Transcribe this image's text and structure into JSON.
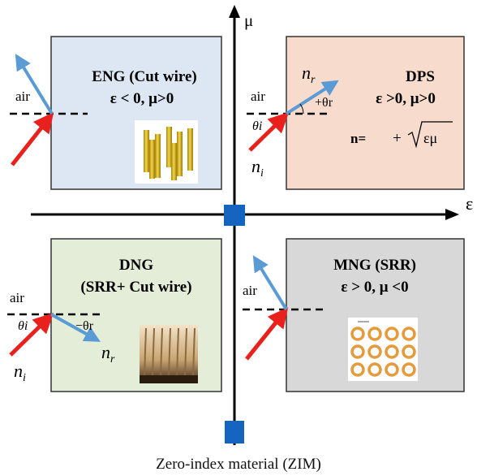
{
  "axes": {
    "mu_label": "μ",
    "eps_label": "ε"
  },
  "quadrants": {
    "eng": {
      "title": "ENG (Cut wire)",
      "condition": "ε < 0, μ>0",
      "medium_label": "air",
      "fill": "#dce7f3"
    },
    "dps": {
      "title": "DPS",
      "condition": "ε >0, μ>0",
      "index_formula_lhs": "n=",
      "index_formula_sign": "+",
      "index_formula_root": "εμ",
      "medium_label": "air",
      "n_r": "n",
      "n_r_sub": "r",
      "n_i": "n",
      "n_i_sub": "i",
      "theta_r": "+θr",
      "theta_i": "θi",
      "fill": "#f7dccd"
    },
    "dng": {
      "title_line1": "DNG",
      "title_line2": "(SRR+ Cut wire)",
      "medium_label": "air",
      "theta_i": "θi",
      "theta_r": "−θr",
      "n_i": "n",
      "n_i_sub": "i",
      "n_r": "n",
      "n_r_sub": "r",
      "fill": "#e3edd8"
    },
    "mng": {
      "title": "MNG (SRR)",
      "condition": "ε > 0, μ <0",
      "medium_label": "air",
      "fill": "#d8d8d8"
    }
  },
  "caption": "Zero-index material (ZIM)",
  "colors": {
    "incident_ray": "#e8211c",
    "refracted_ray": "#5b9bd5",
    "zim_marker": "#1565c0",
    "axis": "#000000"
  }
}
